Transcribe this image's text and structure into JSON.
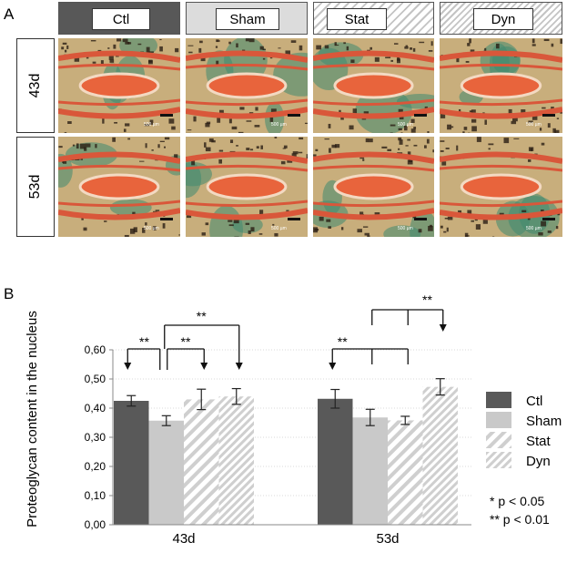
{
  "panels": {
    "a": "A",
    "b": "B"
  },
  "group_headers": [
    {
      "label": "Ctl",
      "style": "dark"
    },
    {
      "label": "Sham",
      "style": "light"
    },
    {
      "label": "Stat",
      "style": "hatch"
    },
    {
      "label": "Dyn",
      "style": "hatch"
    }
  ],
  "row_labels": [
    "43d",
    "53d"
  ],
  "scale_text": "500 µm",
  "colors": {
    "ctl": "#595959",
    "sham": "#c8c8c8",
    "hatch": "#c9c9c9",
    "bone_red": "#d9573a",
    "cartilage": "#e8643c",
    "matrix": "#c8ae7c",
    "stain_green": "#3f8a70"
  },
  "chart_data": {
    "type": "bar",
    "ylabel": "Proteoglycan content in the nucleus",
    "ylim": [
      0,
      0.6
    ],
    "yticks": [
      "0,00",
      "0,10",
      "0,20",
      "0,30",
      "0,40",
      "0,50",
      "0,60"
    ],
    "categories": [
      "43d",
      "53d"
    ],
    "series": [
      {
        "name": "Ctl",
        "values": [
          0.425,
          0.432
        ],
        "errors": [
          0.018,
          0.032
        ],
        "fill": "dark"
      },
      {
        "name": "Sham",
        "values": [
          0.357,
          0.368
        ],
        "errors": [
          0.017,
          0.028
        ],
        "fill": "light"
      },
      {
        "name": "Stat",
        "values": [
          0.43,
          0.358
        ],
        "errors": [
          0.035,
          0.014
        ],
        "fill": "hatch-sparse"
      },
      {
        "name": "Dyn",
        "values": [
          0.44,
          0.473
        ],
        "errors": [
          0.027,
          0.028
        ],
        "fill": "hatch-dense"
      }
    ],
    "significance": [
      {
        "group": "43d",
        "from": "Sham",
        "to": [
          "Ctl"
        ],
        "label": "**"
      },
      {
        "group": "43d",
        "from": "Sham",
        "to": [
          "Stat"
        ],
        "label": "**"
      },
      {
        "group": "43d",
        "from": "Sham",
        "to": [
          "Dyn"
        ],
        "label": "**"
      },
      {
        "group": "53d",
        "from": "Sham/Stat",
        "to": [
          "Ctl"
        ],
        "label": "**"
      },
      {
        "group": "53d",
        "from": "Sham/Stat",
        "to": [
          "Dyn"
        ],
        "label": "**"
      }
    ],
    "legend_position": "right",
    "notes": [
      "*  p < 0.05",
      "** p < 0.01"
    ]
  }
}
